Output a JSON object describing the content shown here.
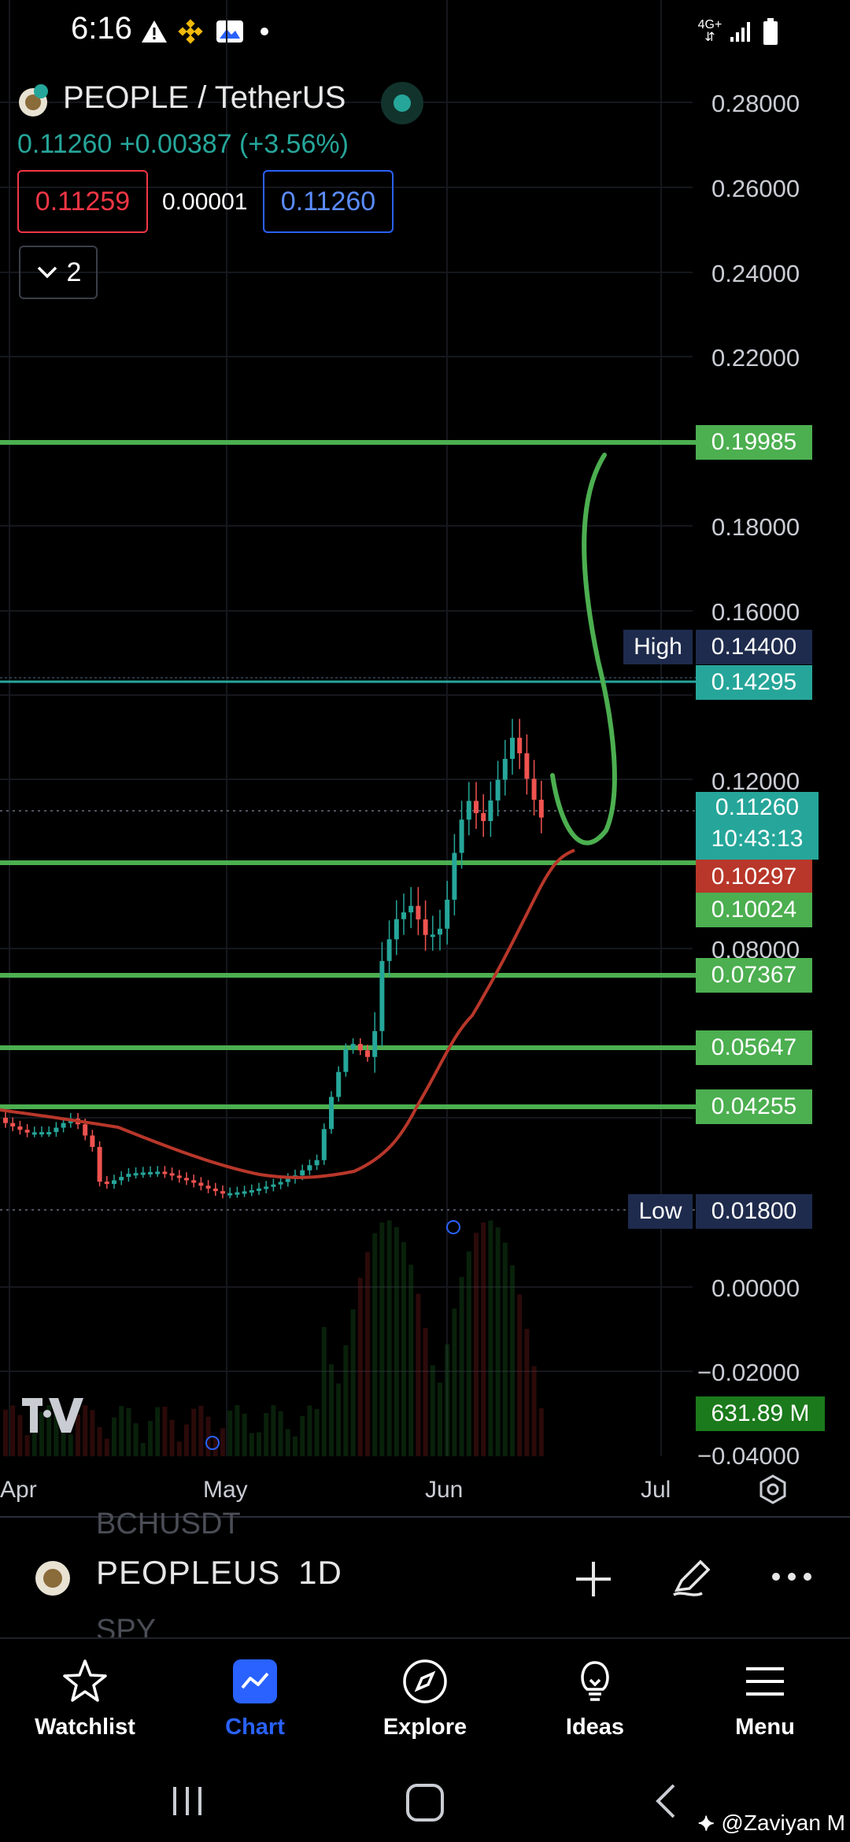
{
  "status_bar": {
    "time": "6:16",
    "icons": [
      "warning-icon",
      "binance-icon",
      "gallery-icon",
      "dot-icon"
    ],
    "network": "4G+"
  },
  "header": {
    "pair": "PEOPLE / TetherUS",
    "price_change": "0.11260 +0.00387 (+3.56%)",
    "bid": "0.11259",
    "spread": "0.00001",
    "ask": "0.11260",
    "indicator_count": "2"
  },
  "price_axis": [
    "0.28000",
    "0.26000",
    "0.24000",
    "0.22000",
    "0.18000",
    "0.16000",
    "0.12000",
    "0.08000",
    "0.00000",
    "−0.02000",
    "−0.04000"
  ],
  "tags": {
    "t1": "0.19985",
    "high_label": "High",
    "high_value": "0.14400",
    "t2": "0.14295",
    "last_price": "0.11260",
    "countdown": "10:43:13",
    "ma": "0.10297",
    "t3": "0.10024",
    "t4": "0.07367",
    "t5": "0.05647",
    "t6": "0.04255",
    "low_label": "Low",
    "low_value": "0.01800",
    "volume": "631.89 M"
  },
  "date_axis": [
    "Apr",
    "May",
    "Jun",
    "Jul"
  ],
  "symbol_bar": {
    "prev": "BCHUSDT",
    "symbol": "PEOPLEUS",
    "interval": "1D",
    "next": "SPY"
  },
  "nav": [
    {
      "label": "Watchlist"
    },
    {
      "label": "Chart"
    },
    {
      "label": "Explore"
    },
    {
      "label": "Ideas"
    },
    {
      "label": "Menu"
    }
  ],
  "watermark": "@Zaviyan M",
  "colors": {
    "green_line": "#4caf50",
    "up": "#26a69a",
    "down": "#ef5350",
    "ma": "#b8372a",
    "accent": "#2962ff"
  }
}
